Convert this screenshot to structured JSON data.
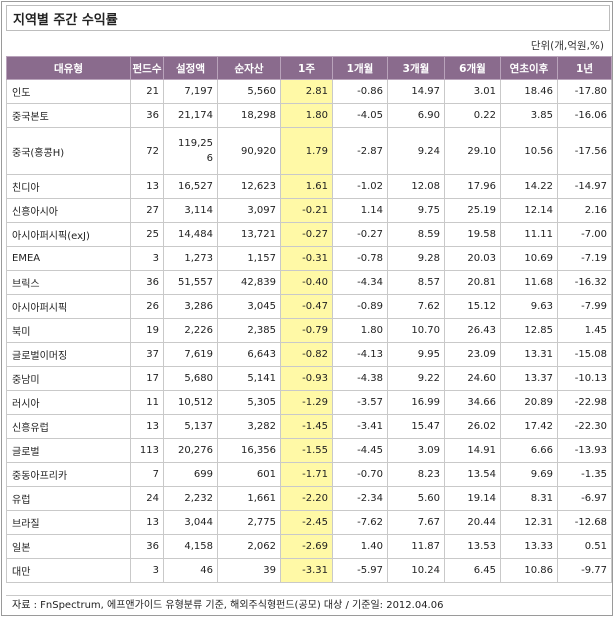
{
  "title": "지역별 주간 수익률",
  "unit_note": "단위(개,억원,%)",
  "columns": [
    "대유형",
    "펀드수",
    "설정액",
    "순자산",
    "1주",
    "1개월",
    "3개월",
    "6개월",
    "연초이후",
    "1년"
  ],
  "rows": [
    {
      "name": "인도",
      "count": "21",
      "setup": "7,197",
      "net": "5,560",
      "w1": "2.81",
      "m1": "-0.86",
      "m3": "14.97",
      "m6": "3.01",
      "ytd": "18.46",
      "y1": "-17.80"
    },
    {
      "name": "중국본토",
      "count": "36",
      "setup": "21,174",
      "net": "18,298",
      "w1": "1.80",
      "m1": "-4.05",
      "m3": "6.90",
      "m6": "0.22",
      "ytd": "3.85",
      "y1": "-16.06"
    },
    {
      "name": "중국(홍콩H)",
      "count": "72",
      "setup": "119,256",
      "net": "90,920",
      "w1": "1.79",
      "m1": "-2.87",
      "m3": "9.24",
      "m6": "29.10",
      "ytd": "10.56",
      "y1": "-17.56"
    },
    {
      "name": "친디아",
      "count": "13",
      "setup": "16,527",
      "net": "12,623",
      "w1": "1.61",
      "m1": "-1.02",
      "m3": "12.08",
      "m6": "17.96",
      "ytd": "14.22",
      "y1": "-14.97"
    },
    {
      "name": "신흥아시아",
      "count": "27",
      "setup": "3,114",
      "net": "3,097",
      "w1": "-0.21",
      "m1": "1.14",
      "m3": "9.75",
      "m6": "25.19",
      "ytd": "12.14",
      "y1": "2.16"
    },
    {
      "name": "아시아퍼시픽(exJ)",
      "count": "25",
      "setup": "14,484",
      "net": "13,721",
      "w1": "-0.27",
      "m1": "-0.27",
      "m3": "8.59",
      "m6": "19.58",
      "ytd": "11.11",
      "y1": "-7.00"
    },
    {
      "name": "EMEA",
      "count": "3",
      "setup": "1,273",
      "net": "1,157",
      "w1": "-0.31",
      "m1": "-0.78",
      "m3": "9.28",
      "m6": "20.03",
      "ytd": "10.69",
      "y1": "-7.19"
    },
    {
      "name": "브릭스",
      "count": "36",
      "setup": "51,557",
      "net": "42,839",
      "w1": "-0.40",
      "m1": "-4.34",
      "m3": "8.57",
      "m6": "20.81",
      "ytd": "11.68",
      "y1": "-16.32"
    },
    {
      "name": "아시아퍼시픽",
      "count": "26",
      "setup": "3,286",
      "net": "3,045",
      "w1": "-0.47",
      "m1": "-0.89",
      "m3": "7.62",
      "m6": "15.12",
      "ytd": "9.63",
      "y1": "-7.99"
    },
    {
      "name": "북미",
      "count": "19",
      "setup": "2,226",
      "net": "2,385",
      "w1": "-0.79",
      "m1": "1.80",
      "m3": "10.70",
      "m6": "26.43",
      "ytd": "12.85",
      "y1": "1.45"
    },
    {
      "name": "글로벌이머징",
      "count": "37",
      "setup": "7,619",
      "net": "6,643",
      "w1": "-0.82",
      "m1": "-4.13",
      "m3": "9.95",
      "m6": "23.09",
      "ytd": "13.31",
      "y1": "-15.08"
    },
    {
      "name": "중남미",
      "count": "17",
      "setup": "5,680",
      "net": "5,141",
      "w1": "-0.93",
      "m1": "-4.38",
      "m3": "9.22",
      "m6": "24.60",
      "ytd": "13.37",
      "y1": "-10.13"
    },
    {
      "name": "러시아",
      "count": "11",
      "setup": "10,512",
      "net": "5,305",
      "w1": "-1.29",
      "m1": "-3.57",
      "m3": "16.99",
      "m6": "34.66",
      "ytd": "20.89",
      "y1": "-22.98"
    },
    {
      "name": "신흥유럽",
      "count": "13",
      "setup": "5,137",
      "net": "3,282",
      "w1": "-1.45",
      "m1": "-3.41",
      "m3": "15.47",
      "m6": "26.02",
      "ytd": "17.42",
      "y1": "-22.30"
    },
    {
      "name": "글로벌",
      "count": "113",
      "setup": "20,276",
      "net": "16,356",
      "w1": "-1.55",
      "m1": "-4.45",
      "m3": "3.09",
      "m6": "14.91",
      "ytd": "6.66",
      "y1": "-13.93"
    },
    {
      "name": "중동아프리카",
      "count": "7",
      "setup": "699",
      "net": "601",
      "w1": "-1.71",
      "m1": "-0.70",
      "m3": "8.23",
      "m6": "13.54",
      "ytd": "9.69",
      "y1": "-1.35"
    },
    {
      "name": "유럽",
      "count": "24",
      "setup": "2,232",
      "net": "1,661",
      "w1": "-2.20",
      "m1": "-2.34",
      "m3": "5.60",
      "m6": "19.14",
      "ytd": "8.31",
      "y1": "-6.97"
    },
    {
      "name": "브라질",
      "count": "13",
      "setup": "3,044",
      "net": "2,775",
      "w1": "-2.45",
      "m1": "-7.62",
      "m3": "7.67",
      "m6": "20.44",
      "ytd": "12.31",
      "y1": "-12.68"
    },
    {
      "name": "일본",
      "count": "36",
      "setup": "4,158",
      "net": "2,062",
      "w1": "-2.69",
      "m1": "1.40",
      "m3": "11.87",
      "m6": "13.53",
      "ytd": "13.33",
      "y1": "0.51"
    },
    {
      "name": "대만",
      "count": "3",
      "setup": "46",
      "net": "39",
      "w1": "-3.31",
      "m1": "-5.97",
      "m3": "10.24",
      "m6": "6.45",
      "ytd": "10.86",
      "y1": "-9.77"
    }
  ],
  "source": "자료 : FnSpectrum, 에프앤가이드 유형분류 기준, 해외주식형펀드(공모) 대상 / 기준일: 2012.04.06",
  "colors": {
    "header_bg": "#8a6b8d",
    "highlight": "#fff9a6"
  }
}
